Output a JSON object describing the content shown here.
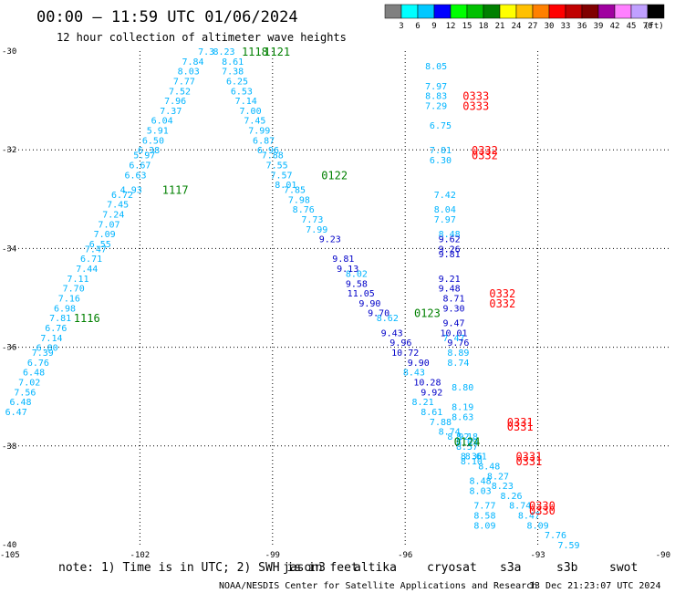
{
  "header": {
    "title": "00:00 – 11:59 UTC 01/06/2024",
    "subtitle": "12 hour collection of altimeter wave heights"
  },
  "colorbar": {
    "ticks": [
      "3",
      "6",
      "9",
      "12",
      "15",
      "18",
      "21",
      "24",
      "27",
      "30",
      "33",
      "36",
      "39",
      "42",
      "45",
      "70"
    ],
    "unit": "(ft)",
    "colors": [
      "#808080",
      "#00ffff",
      "#00c8ff",
      "#0000ff",
      "#00ff00",
      "#00c000",
      "#008000",
      "#ffff00",
      "#ffc000",
      "#ff8000",
      "#ff0000",
      "#c00000",
      "#800000",
      "#a000a0",
      "#ff80ff",
      "#c0a0ff",
      "#000000"
    ]
  },
  "footer": {
    "note": "note: 1) Time is in UTC; 2) SWH is in feet",
    "satellites": [
      {
        "name": "jason3",
        "color": "#008000"
      },
      {
        "name": "altika",
        "color": "#ff9000"
      },
      {
        "name": "cryosat",
        "color": "#ff0000"
      },
      {
        "name": "s3a",
        "color": "#c00000"
      },
      {
        "name": "s3b",
        "color": "#c0a0ff"
      },
      {
        "name": "swot",
        "color": "#ff80ff"
      }
    ],
    "credit": "NOAA/NESDIS Center for Satellite Applications and Research",
    "generated": "13 Dec 21:23:07 UTC 2024"
  },
  "chart_data": {
    "type": "scatter",
    "title": "00:00 – 11:59 UTC 01/06/2024",
    "xlim": [
      -105,
      -90
    ],
    "ylim": [
      -40,
      -30
    ],
    "xticks": [
      -105,
      -102,
      -99,
      -96,
      -93,
      -90
    ],
    "yticks": [
      -30,
      -32,
      -34,
      -36,
      -38,
      -40
    ],
    "xtick_labels": [
      "-105",
      "-102",
      "-99",
      "-96",
      "-93",
      "-90"
    ],
    "ytick_labels": [
      "-30",
      "-32",
      "-34",
      "-36",
      "-38",
      "-40"
    ],
    "grid": true,
    "pass_labels": [
      {
        "text": "1118",
        "x": -99.4,
        "y": -30.0,
        "color": "#008000"
      },
      {
        "text": "1121",
        "x": -98.9,
        "y": -30.0,
        "color": "#008000"
      },
      {
        "text": "1117",
        "x": -101.2,
        "y": -32.8,
        "color": "#008000"
      },
      {
        "text": "1116",
        "x": -103.2,
        "y": -35.4,
        "color": "#008000"
      },
      {
        "text": "0122",
        "x": -97.6,
        "y": -32.5,
        "color": "#008000"
      },
      {
        "text": "0123",
        "x": -95.5,
        "y": -35.3,
        "color": "#008000"
      },
      {
        "text": "0124",
        "x": -94.6,
        "y": -37.9,
        "color": "#008000"
      },
      {
        "text": "0333",
        "x": -94.4,
        "y": -30.9,
        "color": "#ff0000"
      },
      {
        "text": "0333",
        "x": -94.4,
        "y": -31.1,
        "color": "#ff0000"
      },
      {
        "text": "0332",
        "x": -94.2,
        "y": -32.0,
        "color": "#ff0000"
      },
      {
        "text": "0332",
        "x": -94.2,
        "y": -32.1,
        "color": "#ff0000"
      },
      {
        "text": "0332",
        "x": -93.8,
        "y": -34.9,
        "color": "#ff0000"
      },
      {
        "text": "0332",
        "x": -93.8,
        "y": -35.1,
        "color": "#ff0000"
      },
      {
        "text": "0331",
        "x": -93.4,
        "y": -37.5,
        "color": "#ff0000"
      },
      {
        "text": "0331",
        "x": -93.4,
        "y": -37.6,
        "color": "#ff0000"
      },
      {
        "text": "0331",
        "x": -93.2,
        "y": -38.2,
        "color": "#ff0000"
      },
      {
        "text": "0331",
        "x": -93.2,
        "y": -38.3,
        "color": "#ff0000"
      },
      {
        "text": "0330",
        "x": -92.9,
        "y": -39.2,
        "color": "#ff0000"
      },
      {
        "text": "0330",
        "x": -92.9,
        "y": -39.3,
        "color": "#ff0000"
      }
    ],
    "series": [
      {
        "color": "#00b4ff",
        "points": [
          {
            "x": -100.5,
            "y": -30.0,
            "v": "7.3"
          },
          {
            "x": -100.8,
            "y": -30.2,
            "v": "7.84"
          },
          {
            "x": -100.9,
            "y": -30.4,
            "v": "8.03"
          },
          {
            "x": -101.0,
            "y": -30.6,
            "v": "7.77"
          },
          {
            "x": -101.1,
            "y": -30.8,
            "v": "7.52"
          },
          {
            "x": -101.2,
            "y": -31.0,
            "v": "7.96"
          },
          {
            "x": -101.3,
            "y": -31.2,
            "v": "7.37"
          },
          {
            "x": -101.5,
            "y": -31.4,
            "v": "6.04"
          },
          {
            "x": -101.6,
            "y": -31.6,
            "v": "5.91"
          },
          {
            "x": -101.7,
            "y": -31.8,
            "v": "6.50"
          },
          {
            "x": -101.8,
            "y": -32.0,
            "v": "6.38"
          },
          {
            "x": -101.9,
            "y": -32.1,
            "v": "5.97"
          },
          {
            "x": -102.0,
            "y": -32.3,
            "v": "6.67"
          },
          {
            "x": -102.1,
            "y": -32.5,
            "v": "6.63"
          },
          {
            "x": -102.2,
            "y": -32.8,
            "v": "4.93"
          },
          {
            "x": -102.4,
            "y": -32.9,
            "v": "6.72"
          },
          {
            "x": -102.5,
            "y": -33.1,
            "v": "7.45"
          },
          {
            "x": -102.6,
            "y": -33.3,
            "v": "7.24"
          },
          {
            "x": -102.7,
            "y": -33.5,
            "v": "7.07"
          },
          {
            "x": -102.8,
            "y": -33.7,
            "v": "7.09"
          },
          {
            "x": -102.9,
            "y": -33.9,
            "v": "6.55"
          },
          {
            "x": -103.0,
            "y": -34.0,
            "v": "7.47"
          },
          {
            "x": -103.1,
            "y": -34.2,
            "v": "6.71"
          },
          {
            "x": -103.2,
            "y": -34.4,
            "v": "7.44"
          },
          {
            "x": -103.4,
            "y": -34.6,
            "v": "7.11"
          },
          {
            "x": -103.5,
            "y": -34.8,
            "v": "7.70"
          },
          {
            "x": -103.6,
            "y": -35.0,
            "v": "7.16"
          },
          {
            "x": -103.7,
            "y": -35.2,
            "v": "6.98"
          },
          {
            "x": -103.8,
            "y": -35.4,
            "v": "7.81"
          },
          {
            "x": -103.9,
            "y": -35.6,
            "v": "6.76"
          },
          {
            "x": -104.0,
            "y": -35.8,
            "v": "7.14"
          },
          {
            "x": -104.1,
            "y": -36.0,
            "v": "6.80"
          },
          {
            "x": -104.2,
            "y": -36.1,
            "v": "7.39"
          },
          {
            "x": -104.3,
            "y": -36.3,
            "v": "6.76"
          },
          {
            "x": -104.4,
            "y": -36.5,
            "v": "6.48"
          },
          {
            "x": -104.5,
            "y": -36.7,
            "v": "7.02"
          },
          {
            "x": -104.6,
            "y": -36.9,
            "v": "7.56"
          },
          {
            "x": -104.7,
            "y": -37.1,
            "v": "6.48"
          },
          {
            "x": -104.8,
            "y": -37.3,
            "v": "6.47"
          },
          {
            "x": -100.1,
            "y": -30.0,
            "v": "8.23"
          },
          {
            "x": -99.9,
            "y": -30.2,
            "v": "8.61"
          },
          {
            "x": -99.9,
            "y": -30.4,
            "v": "7.38"
          },
          {
            "x": -99.8,
            "y": -30.6,
            "v": "6.25"
          },
          {
            "x": -99.7,
            "y": -30.8,
            "v": "6.53"
          },
          {
            "x": -99.6,
            "y": -31.0,
            "v": "7.14"
          },
          {
            "x": -99.5,
            "y": -31.2,
            "v": "7.00"
          },
          {
            "x": -99.4,
            "y": -31.4,
            "v": "7.45"
          },
          {
            "x": -99.3,
            "y": -31.6,
            "v": "7.99"
          },
          {
            "x": -99.2,
            "y": -31.8,
            "v": "6.87"
          },
          {
            "x": -99.1,
            "y": -32.0,
            "v": "6.96"
          },
          {
            "x": -99.0,
            "y": -32.1,
            "v": "7.88"
          },
          {
            "x": -98.9,
            "y": -32.3,
            "v": "7.55"
          },
          {
            "x": -98.8,
            "y": -32.5,
            "v": "7.57"
          },
          {
            "x": -98.7,
            "y": -32.7,
            "v": "8.01"
          },
          {
            "x": -98.5,
            "y": -32.8,
            "v": "7.85"
          },
          {
            "x": -98.4,
            "y": -33.0,
            "v": "7.98"
          },
          {
            "x": -98.3,
            "y": -33.2,
            "v": "8.76"
          },
          {
            "x": -98.1,
            "y": -33.4,
            "v": "7.73"
          },
          {
            "x": -98.0,
            "y": -33.6,
            "v": "7.99"
          },
          {
            "x": -97.1,
            "y": -34.5,
            "v": "8.02"
          },
          {
            "x": -96.4,
            "y": -35.4,
            "v": "8.62"
          },
          {
            "x": -95.8,
            "y": -36.5,
            "v": "8.43"
          },
          {
            "x": -95.6,
            "y": -37.1,
            "v": "8.21"
          },
          {
            "x": -95.4,
            "y": -37.3,
            "v": "8.61"
          },
          {
            "x": -95.2,
            "y": -37.5,
            "v": "7.88"
          },
          {
            "x": -95.0,
            "y": -37.7,
            "v": "8.74"
          },
          {
            "x": -94.8,
            "y": -37.8,
            "v": "8.92"
          },
          {
            "x": -94.6,
            "y": -38.0,
            "v": "8.57"
          },
          {
            "x": -94.4,
            "y": -38.2,
            "v": "8.61"
          },
          {
            "x": -94.1,
            "y": -38.4,
            "v": "8.48"
          },
          {
            "x": -93.9,
            "y": -38.6,
            "v": "8.27"
          },
          {
            "x": -93.8,
            "y": -38.8,
            "v": "8.23"
          },
          {
            "x": -93.6,
            "y": -39.0,
            "v": "8.26"
          },
          {
            "x": -93.4,
            "y": -39.2,
            "v": "8.74"
          },
          {
            "x": -93.2,
            "y": -39.4,
            "v": "8.47"
          },
          {
            "x": -93.0,
            "y": -39.6,
            "v": "8.09"
          },
          {
            "x": -92.6,
            "y": -39.8,
            "v": "7.76"
          },
          {
            "x": -92.3,
            "y": -40.0,
            "v": "7.59"
          },
          {
            "x": -95.3,
            "y": -30.3,
            "v": "8.05"
          },
          {
            "x": -95.3,
            "y": -30.7,
            "v": "7.97"
          },
          {
            "x": -95.3,
            "y": -30.9,
            "v": "8.83"
          },
          {
            "x": -95.3,
            "y": -31.1,
            "v": "7.29"
          },
          {
            "x": -95.2,
            "y": -31.5,
            "v": "6.75"
          },
          {
            "x": -95.2,
            "y": -32.0,
            "v": "7.81"
          },
          {
            "x": -95.2,
            "y": -32.2,
            "v": "6.30"
          },
          {
            "x": -95.1,
            "y": -32.9,
            "v": "7.42"
          },
          {
            "x": -95.1,
            "y": -33.2,
            "v": "8.04"
          },
          {
            "x": -95.1,
            "y": -33.4,
            "v": "7.97"
          },
          {
            "x": -95.0,
            "y": -33.7,
            "v": "8.48"
          },
          {
            "x": -94.9,
            "y": -35.8,
            "v": "7.47"
          },
          {
            "x": -94.8,
            "y": -36.1,
            "v": "8.89"
          },
          {
            "x": -94.8,
            "y": -36.3,
            "v": "8.74"
          },
          {
            "x": -94.7,
            "y": -36.8,
            "v": "8.80"
          },
          {
            "x": -94.7,
            "y": -37.2,
            "v": "8.19"
          },
          {
            "x": -94.7,
            "y": -37.4,
            "v": "8.63"
          },
          {
            "x": -94.6,
            "y": -37.8,
            "v": "8.18"
          },
          {
            "x": -94.6,
            "y": -37.9,
            "v": "8.09"
          },
          {
            "x": -94.5,
            "y": -38.2,
            "v": "8.36"
          },
          {
            "x": -94.5,
            "y": -38.3,
            "v": "8.10"
          },
          {
            "x": -94.3,
            "y": -38.7,
            "v": "8.48"
          },
          {
            "x": -94.3,
            "y": -38.9,
            "v": "8.03"
          },
          {
            "x": -94.2,
            "y": -39.2,
            "v": "7.77"
          },
          {
            "x": -94.2,
            "y": -39.4,
            "v": "8.58"
          },
          {
            "x": -94.2,
            "y": -39.6,
            "v": "8.09"
          }
        ]
      },
      {
        "color": "#0000c8",
        "points": [
          {
            "x": -97.7,
            "y": -33.8,
            "v": "9.23"
          },
          {
            "x": -97.4,
            "y": -34.2,
            "v": "9.81"
          },
          {
            "x": -97.3,
            "y": -34.4,
            "v": "9.13"
          },
          {
            "x": -97.1,
            "y": -34.7,
            "v": "9.58"
          },
          {
            "x": -97.0,
            "y": -34.9,
            "v": "11.05"
          },
          {
            "x": -96.8,
            "y": -35.1,
            "v": "9.90"
          },
          {
            "x": -96.6,
            "y": -35.3,
            "v": "9.70"
          },
          {
            "x": -96.3,
            "y": -35.7,
            "v": "9.43"
          },
          {
            "x": -96.1,
            "y": -35.9,
            "v": "9.96"
          },
          {
            "x": -96.0,
            "y": -36.1,
            "v": "10.72"
          },
          {
            "x": -95.7,
            "y": -36.3,
            "v": "9.90"
          },
          {
            "x": -95.5,
            "y": -36.7,
            "v": "10.28"
          },
          {
            "x": -95.4,
            "y": -36.9,
            "v": "9.92"
          },
          {
            "x": -95.0,
            "y": -33.8,
            "v": "9.62"
          },
          {
            "x": -95.0,
            "y": -34.0,
            "v": "9.26"
          },
          {
            "x": -95.0,
            "y": -34.1,
            "v": "9.81"
          },
          {
            "x": -95.0,
            "y": -34.6,
            "v": "9.21"
          },
          {
            "x": -95.0,
            "y": -34.8,
            "v": "9.48"
          },
          {
            "x": -94.9,
            "y": -35.0,
            "v": "8.71"
          },
          {
            "x": -94.9,
            "y": -35.2,
            "v": "9.30"
          },
          {
            "x": -94.9,
            "y": -35.5,
            "v": "9.47"
          },
          {
            "x": -94.9,
            "y": -35.7,
            "v": "10.01"
          },
          {
            "x": -94.8,
            "y": -35.9,
            "v": "9.76"
          }
        ]
      }
    ]
  }
}
